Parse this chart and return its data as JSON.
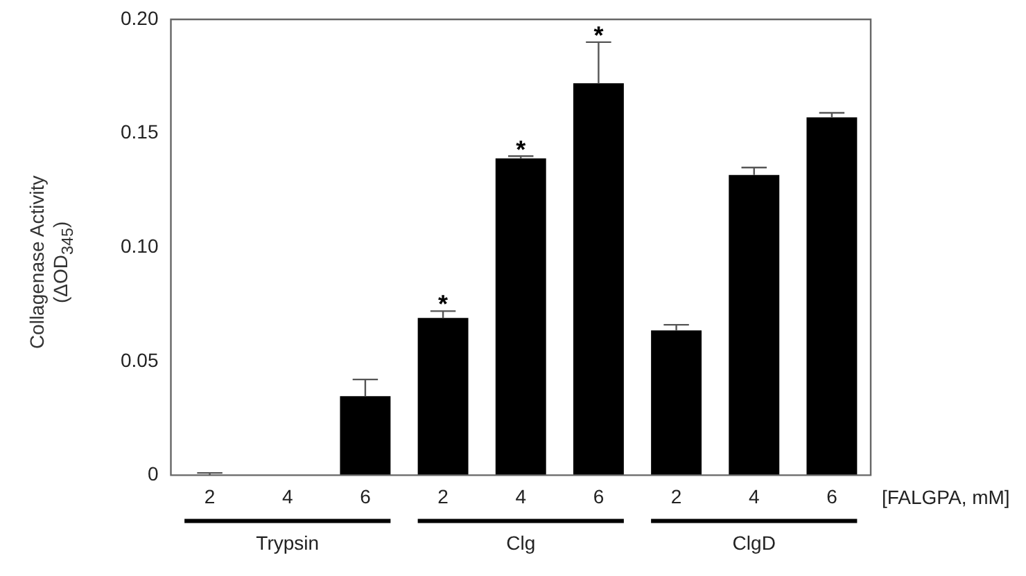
{
  "chart_data": {
    "type": "bar",
    "ylabel": "Collagenase Activity\n(ΔOD$_{345}$)",
    "xlabel": "[FALGPA, mM]",
    "categories": [
      "2",
      "4",
      "6",
      "2",
      "4",
      "6",
      "2",
      "4",
      "6"
    ],
    "values": [
      0,
      0,
      0.0347,
      0.069,
      0.139,
      0.172,
      0.0635,
      0.1317,
      0.157
    ],
    "errors": [
      [
        0,
        0.001
      ],
      null,
      [
        0.0347,
        0.042
      ],
      [
        0.069,
        0.072
      ],
      [
        0.139,
        0.14
      ],
      [
        0.172,
        0.19
      ],
      [
        0.0635,
        0.066
      ],
      [
        0.1317,
        0.135
      ],
      [
        0.157,
        0.159
      ]
    ],
    "value_labels": [
      null,
      null,
      null,
      "*",
      "*",
      "*",
      null,
      null,
      null
    ],
    "color": "#000000",
    "annotations": [
      "Trypsin",
      "Clg",
      "ClgD"
    ],
    "ylim": [
      0,
      0.2
    ],
    "yticks": [
      0,
      0.05,
      {
        "value": 0.1,
        "label": "0.10"
      },
      0.15,
      {
        "value": 0.2,
        "label": "0.20"
      }
    ],
    "grid": false,
    "legend": false
  }
}
